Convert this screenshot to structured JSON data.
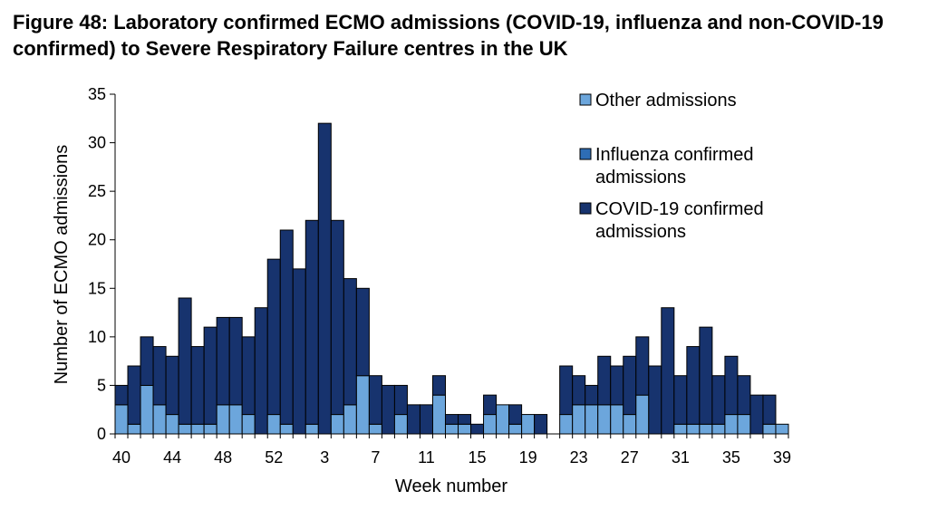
{
  "chart_data": {
    "type": "bar",
    "stacked": true,
    "title": "Figure 48: Laboratory confirmed ECMO admissions (COVID-19, influenza and non-COVID-19 confirmed) to Severe Respiratory Failure centres in the UK",
    "xlabel": "Week number",
    "ylabel": "Number of ECMO admissions",
    "ylim": [
      0,
      35
    ],
    "yticks": [
      0,
      5,
      10,
      15,
      20,
      25,
      30,
      35
    ],
    "categories": [
      "40",
      "41",
      "42",
      "43",
      "44",
      "45",
      "46",
      "47",
      "48",
      "49",
      "50",
      "51",
      "52",
      "53",
      "1",
      "2",
      "3",
      "4",
      "5",
      "6",
      "7",
      "8",
      "9",
      "10",
      "11",
      "12",
      "13",
      "14",
      "15",
      "16",
      "17",
      "18",
      "19",
      "20",
      "21",
      "22",
      "23",
      "24",
      "25",
      "26",
      "27",
      "28",
      "29",
      "30",
      "31",
      "32",
      "33",
      "34",
      "35",
      "36",
      "37",
      "38",
      "39"
    ],
    "xtick_labels": [
      "40",
      "44",
      "48",
      "52",
      "3",
      "7",
      "11",
      "15",
      "19",
      "23",
      "27",
      "31",
      "35",
      "39"
    ],
    "legend_position": "top-right",
    "colors": {
      "other": "#6ca6dc",
      "influenza": "#2e6db5",
      "covid": "#17336e",
      "stroke": "#000000"
    },
    "series": [
      {
        "name": "Other admissions",
        "legend": [
          "Other admissions"
        ],
        "values": [
          3,
          1,
          5,
          3,
          2,
          1,
          1,
          1,
          3,
          3,
          2,
          0,
          2,
          1,
          0,
          1,
          0,
          2,
          3,
          6,
          1,
          0,
          2,
          0,
          0,
          4,
          1,
          1,
          0,
          2,
          3,
          1,
          2,
          0,
          0,
          2,
          3,
          3,
          3,
          3,
          2,
          4,
          0,
          0,
          1,
          1,
          1,
          1,
          2,
          2,
          0,
          1,
          1
        ]
      },
      {
        "name": "Influenza confirmed admissions",
        "legend": [
          "Influenza confirmed",
          "admissions"
        ],
        "values": [
          0,
          0,
          0,
          0,
          0,
          0,
          0,
          0,
          0,
          0,
          0,
          0,
          0,
          0,
          0,
          0,
          0,
          0,
          0,
          0,
          0,
          0,
          0,
          0,
          0,
          0,
          0,
          0,
          0,
          0,
          0,
          0,
          0,
          0,
          0,
          0,
          0,
          0,
          0,
          0,
          0,
          0,
          0,
          0,
          0,
          0,
          0,
          0,
          0,
          0,
          0,
          0,
          0
        ]
      },
      {
        "name": "COVID-19 confirmed admissions",
        "legend": [
          "COVID-19 confirmed",
          "admissions"
        ],
        "values": [
          2,
          6,
          5,
          6,
          6,
          13,
          8,
          10,
          9,
          9,
          8,
          13,
          16,
          20,
          17,
          21,
          32,
          20,
          13,
          9,
          5,
          5,
          3,
          3,
          3,
          2,
          1,
          1,
          1,
          2,
          0,
          2,
          0,
          2,
          0,
          5,
          3,
          2,
          5,
          4,
          6,
          6,
          7,
          13,
          5,
          8,
          10,
          5,
          6,
          4,
          4,
          3,
          0
        ]
      }
    ]
  }
}
